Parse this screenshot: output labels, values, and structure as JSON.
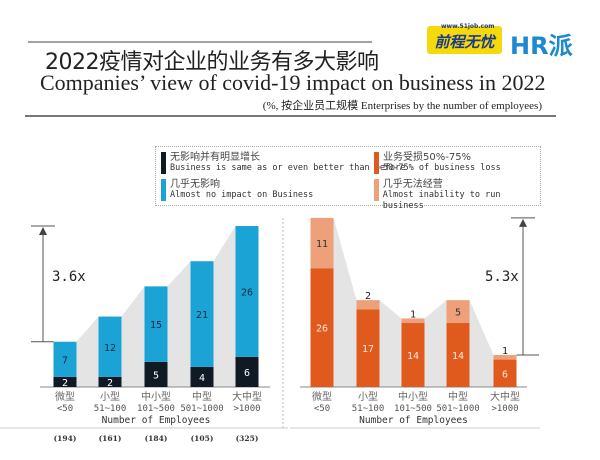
{
  "header": {
    "title_cn": "2022疫情对企业的业务有多大影响",
    "title_en": "Companies’ view of covid-19 impact on business in 2022",
    "subtitle": "(%, 按企业员工规模  Enterprises by the number of employees)",
    "logo_51job_url": "www.51job.com",
    "logo_51job": "前程无忧",
    "logo_hr": "HR派"
  },
  "legend": [
    {
      "cn": "无影响并有明显增长",
      "en": "Business is same as or even better than before",
      "color": "#0f1a24"
    },
    {
      "cn": "几乎无影响",
      "en": "Almost no impact on Business",
      "color": "#1ba3d6"
    },
    {
      "cn": "业务受损50%-75%",
      "en": "50-75% of business loss",
      "color": "#e05a1e"
    },
    {
      "cn": "几乎无法经营",
      "en": "Almost inability to run business",
      "color": "#eea07a"
    }
  ],
  "chart_data": [
    {
      "type": "bar",
      "stacked": true,
      "categories": [
        "微型\n<50",
        "小型\n51~100",
        "中小型\n101~500",
        "中型\n501~1000",
        "大中型\n>1000"
      ],
      "sample_sizes": [
        "(194)",
        "(161)",
        "(184)",
        "(105)",
        "(325)"
      ],
      "xlabel": "Number of Employees",
      "series": [
        {
          "name": "无影响并有明显增长 Business is same as or even better than before",
          "values": [
            2,
            2,
            5,
            4,
            6
          ],
          "color": "#0f1a24"
        },
        {
          "name": "几乎无影响 Almost no impact on Business",
          "values": [
            7,
            12,
            15,
            21,
            26
          ],
          "color": "#1ba3d6"
        }
      ],
      "annotation": "3.6x"
    },
    {
      "type": "bar",
      "stacked": true,
      "categories": [
        "微型\n<50",
        "小型\n51~100",
        "中小型\n101~500",
        "中型\n501~1000",
        "大中型\n>1000"
      ],
      "xlabel": "Number of Employees",
      "series": [
        {
          "name": "业务受损50%-75% 50-75% of business loss",
          "values": [
            26,
            17,
            14,
            14,
            6
          ],
          "color": "#e05a1e"
        },
        {
          "name": "几乎无法经营 Almost inability to run business",
          "values": [
            11,
            2,
            1,
            5,
            1
          ],
          "color": "#eea07a"
        }
      ],
      "annotation": "5.3x"
    }
  ]
}
